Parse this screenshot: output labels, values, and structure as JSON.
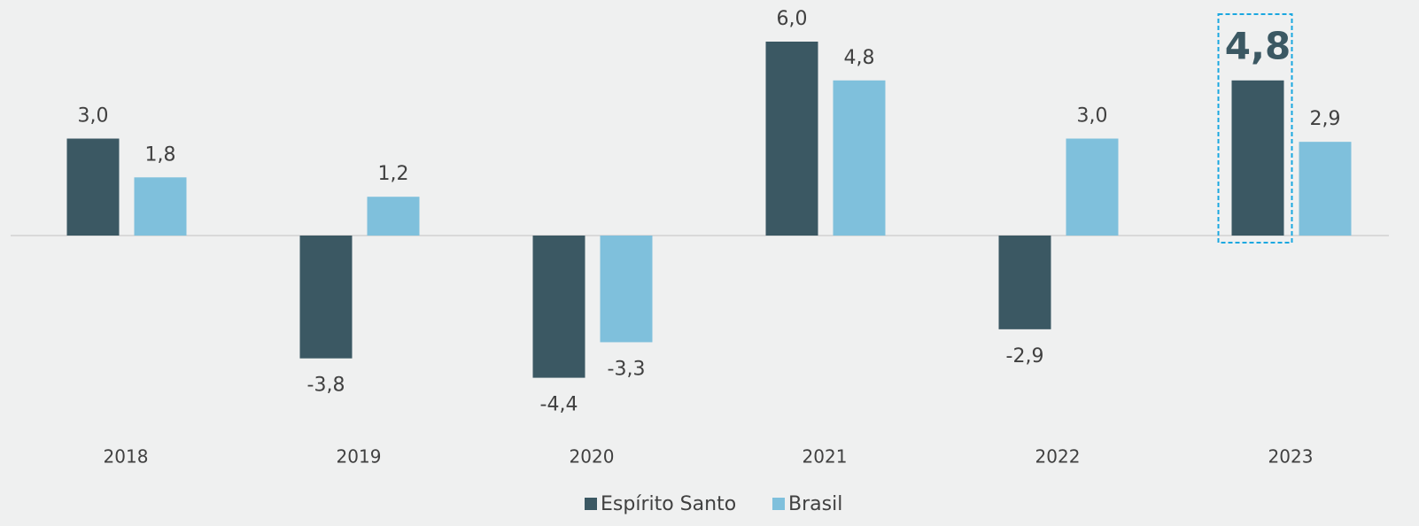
{
  "chart_data": {
    "type": "bar",
    "categories": [
      "2018",
      "2019",
      "2020",
      "2021",
      "2022",
      "2023"
    ],
    "series": [
      {
        "name": "Espírito Santo",
        "color": "#3b5863",
        "values": [
          3.0,
          -3.8,
          -4.4,
          6.0,
          -2.9,
          4.8
        ],
        "value_labels": [
          "3,0",
          "-3,8",
          "-4,4",
          "6,0",
          "-2,9",
          "4,8"
        ],
        "highlight": 5
      },
      {
        "name": "Brasil",
        "color": "#7fc0dc",
        "values": [
          1.8,
          1.2,
          -3.3,
          4.8,
          3.0,
          2.9
        ],
        "value_labels": [
          "1,8",
          "1,2",
          "-3,3",
          "4,8",
          "3,0",
          "2,9"
        ]
      }
    ],
    "legend": "bottom"
  }
}
